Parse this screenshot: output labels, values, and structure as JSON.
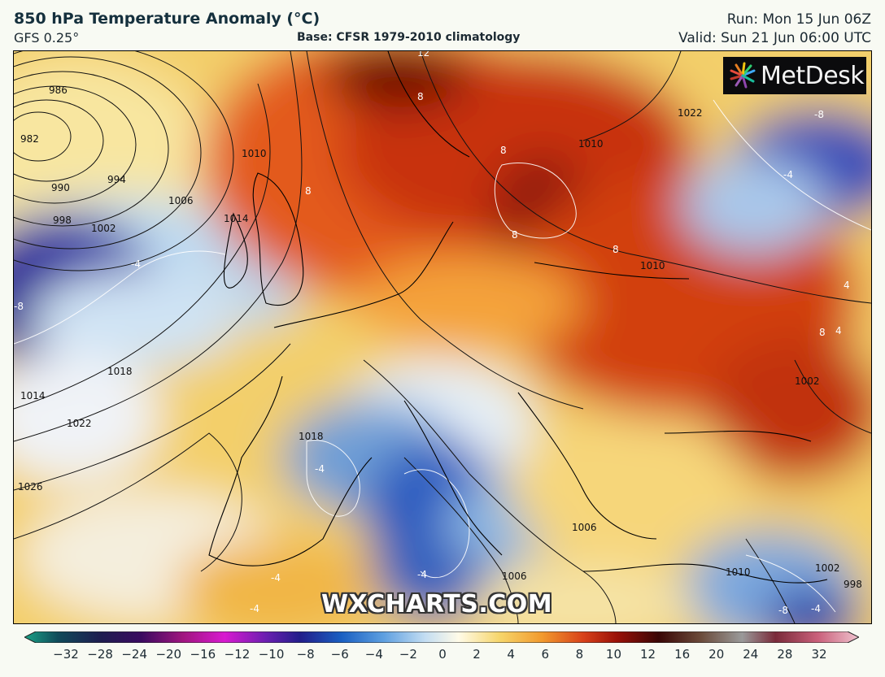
{
  "header": {
    "title": "850 hPa Temperature Anomaly (°C)",
    "model": "GFS 0.25°",
    "base": "Base: CFSR 1979-2010 climatology",
    "run": "Run: Mon 15 Jun 06Z",
    "valid": "Valid: Sun 21 Jun 06:00 UTC"
  },
  "logo": {
    "text": "MetDesk",
    "icon": "metdesk-burst-icon"
  },
  "watermark": "WXCHARTS.COM",
  "map": {
    "region": "Europe",
    "isobar_labels": [
      "986",
      "982",
      "990",
      "994",
      "998",
      "1002",
      "1006",
      "1010",
      "1014",
      "1014",
      "1018",
      "1022",
      "1026",
      "1022",
      "1010",
      "1002",
      "1006",
      "1006",
      "1010",
      "1010",
      "1018",
      "998",
      "1002"
    ],
    "anomaly_labels": [
      "12",
      "8",
      "8",
      "8",
      "8",
      "8",
      "8",
      "4",
      "-4",
      "-8",
      "-8",
      "-4",
      "-4",
      "-4",
      "-4",
      "-4",
      "-4",
      "-8",
      "4"
    ]
  },
  "colorbar": {
    "ticks": [
      "−32",
      "−28",
      "−24",
      "−20",
      "−16",
      "−12",
      "−10",
      "−8",
      "−6",
      "−4",
      "−2",
      "0",
      "2",
      "4",
      "6",
      "8",
      "10",
      "12",
      "16",
      "20",
      "24",
      "28",
      "32"
    ],
    "colors": {
      "min": "#1aa386",
      "deep_purple": "#2a0a6e",
      "magenta": "#d81ad0",
      "navy": "#221d8a",
      "blue": "#1a5fc2",
      "light_blue": "#9bc7ea",
      "white": "#ffffff",
      "yellow": "#f6d56a",
      "orange": "#f29a2e",
      "red": "#d8401a",
      "dark_red": "#7a0a08",
      "brown": "#6b4a3a",
      "grey": "#9a9a9a",
      "pink": "#e8a3b4"
    }
  }
}
